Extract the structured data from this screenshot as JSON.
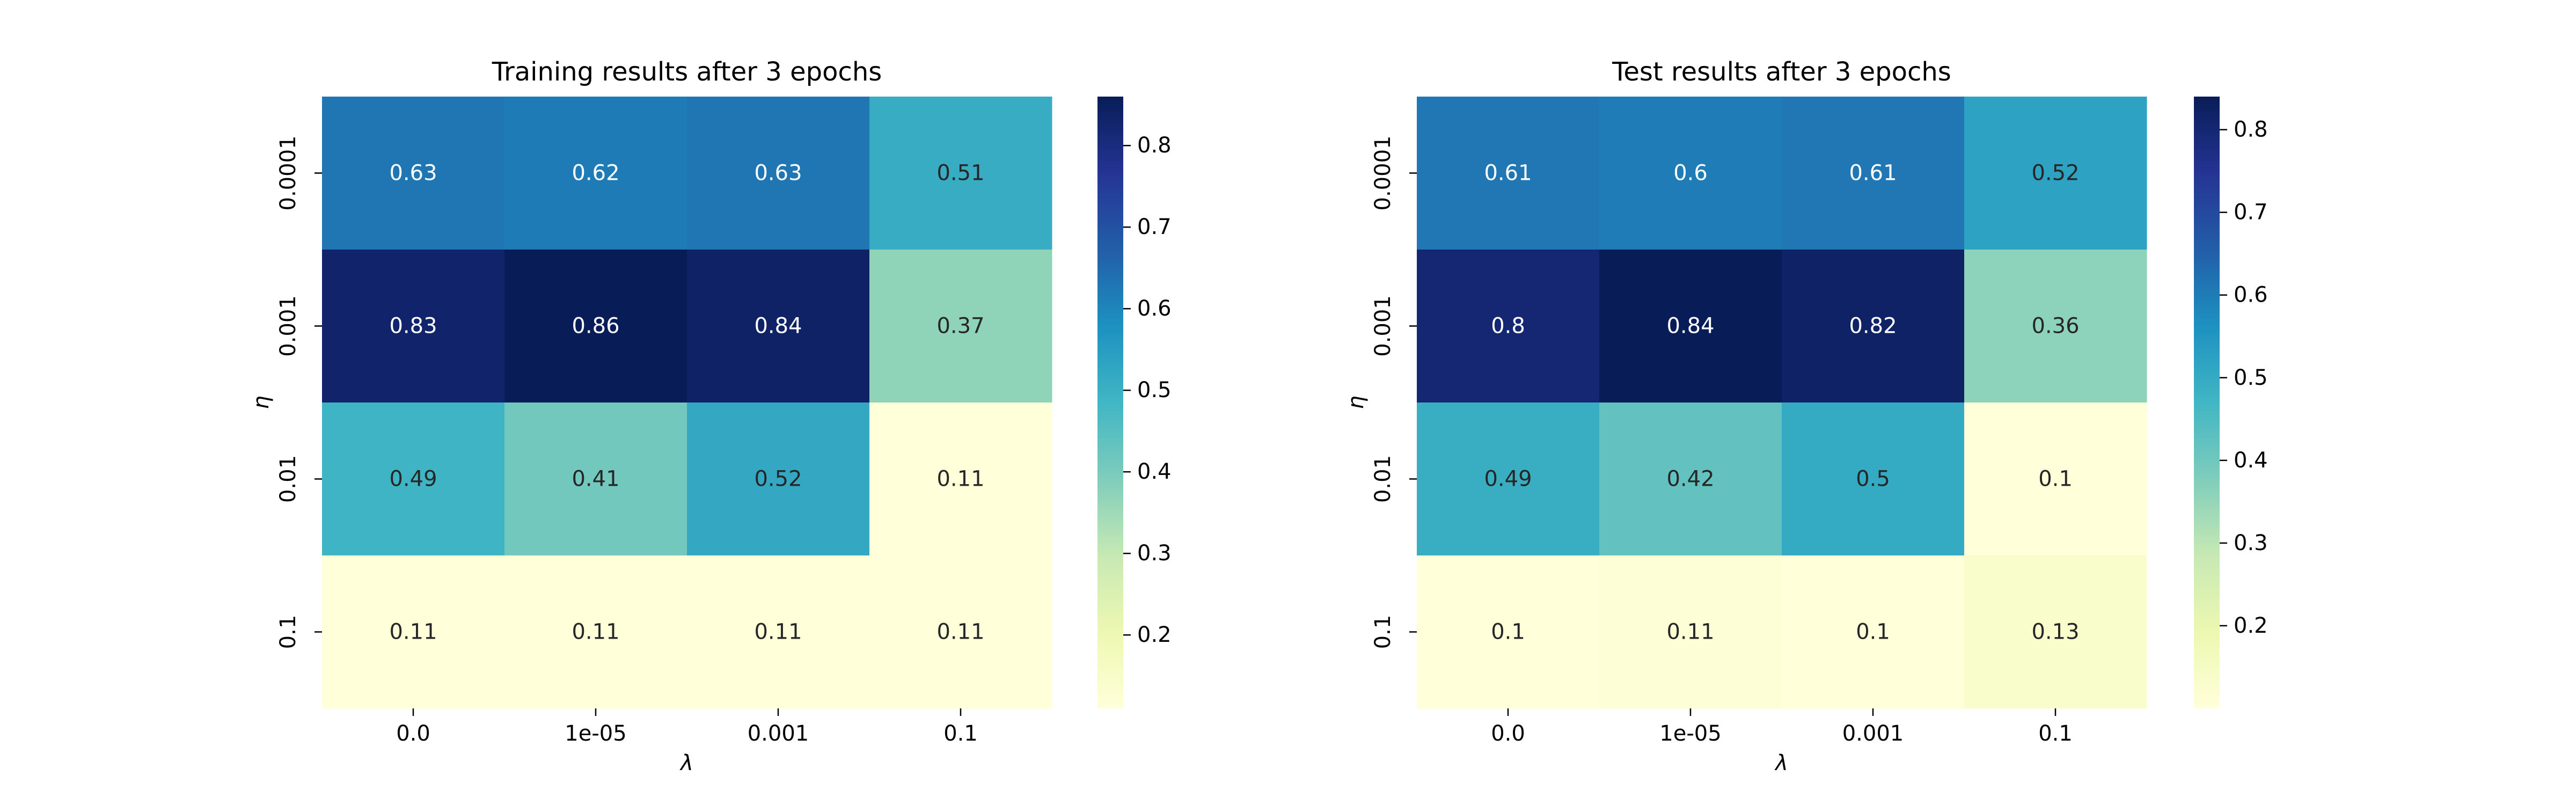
{
  "chart_data": [
    {
      "type": "heatmap",
      "title": "Training results after 3 epochs",
      "xlabel": "λ",
      "ylabel": "η",
      "x_categories": [
        "0.0",
        "1e-05",
        "0.001",
        "0.1"
      ],
      "y_categories": [
        "0.0001",
        "0.001",
        "0.01",
        "0.1"
      ],
      "values": [
        [
          0.63,
          0.62,
          0.63,
          0.51
        ],
        [
          0.83,
          0.86,
          0.84,
          0.37
        ],
        [
          0.49,
          0.41,
          0.52,
          0.11
        ],
        [
          0.11,
          0.11,
          0.11,
          0.11
        ]
      ],
      "value_range": [
        0.11,
        0.86
      ],
      "colormap": "YlGnBu",
      "colorbar_ticks": [
        "0.2",
        "0.3",
        "0.4",
        "0.5",
        "0.6",
        "0.7",
        "0.8"
      ],
      "annotations": true,
      "grid": false
    },
    {
      "type": "heatmap",
      "title": "Test results after 3 epochs",
      "xlabel": "λ",
      "ylabel": "η",
      "x_categories": [
        "0.0",
        "1e-05",
        "0.001",
        "0.1"
      ],
      "y_categories": [
        "0.0001",
        "0.001",
        "0.01",
        "0.1"
      ],
      "values": [
        [
          0.61,
          0.6,
          0.61,
          0.52
        ],
        [
          0.8,
          0.84,
          0.82,
          0.36
        ],
        [
          0.49,
          0.42,
          0.5,
          0.1
        ],
        [
          0.1,
          0.11,
          0.1,
          0.13
        ]
      ],
      "value_range": [
        0.1,
        0.84
      ],
      "colormap": "YlGnBu",
      "colorbar_ticks": [
        "0.2",
        "0.3",
        "0.4",
        "0.5",
        "0.6",
        "0.7",
        "0.8"
      ],
      "annotations": true,
      "grid": false
    }
  ],
  "colors": {
    "colormap_stops": [
      "#ffffd9",
      "#edf8b1",
      "#c7e9b4",
      "#7fcdbb",
      "#41b6c4",
      "#1d91c0",
      "#225ea8",
      "#253494",
      "#081d58"
    ],
    "light_text": "#ffffff",
    "dark_text": "#262626"
  }
}
